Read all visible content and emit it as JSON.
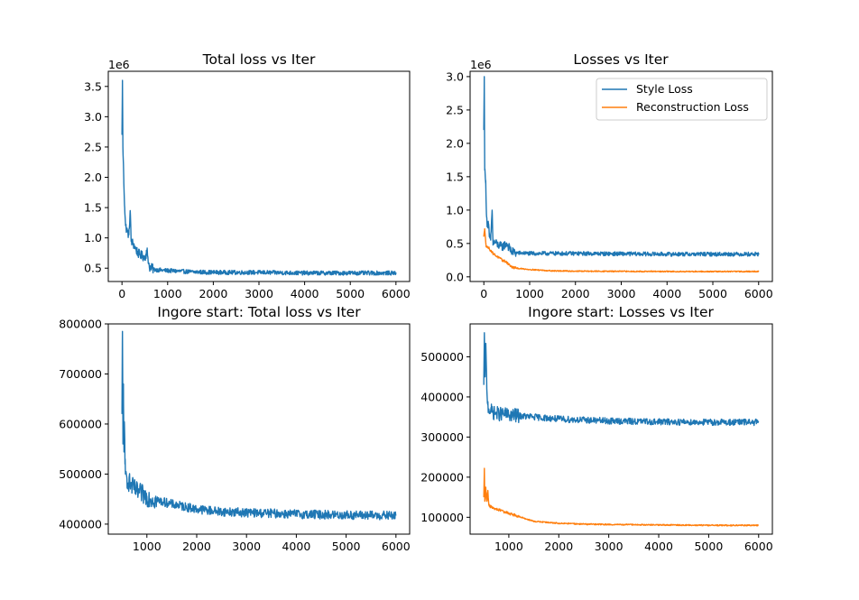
{
  "colors": {
    "style": "#1f77b4",
    "recon": "#ff7f0e",
    "axis": "#000000",
    "background": "#ffffff"
  },
  "chart_data": [
    {
      "type": "line",
      "title": "Total loss vs Iter",
      "xlabel": "",
      "ylabel": "",
      "offset_label": "1e6",
      "xlim": [
        -300,
        6300
      ],
      "ylim": [
        0.28,
        3.75
      ],
      "x_ticks": [
        0,
        1000,
        2000,
        3000,
        4000,
        5000,
        6000
      ],
      "x_tick_labels": [
        "0",
        "1000",
        "2000",
        "3000",
        "4000",
        "5000",
        "6000"
      ],
      "y_ticks": [
        0.5,
        1.0,
        1.5,
        2.0,
        2.5,
        3.0,
        3.5
      ],
      "y_tick_labels": [
        "0.5",
        "1.0",
        "1.5",
        "2.0",
        "2.5",
        "3.0",
        "3.5"
      ],
      "grid": false,
      "series": [
        {
          "color": "#1f77b4",
          "x": [
            0,
            10,
            20,
            40,
            60,
            80,
            100,
            120,
            150,
            180,
            200,
            250,
            300,
            350,
            400,
            500,
            550,
            600,
            700,
            800,
            1000,
            1500,
            2000,
            3000,
            4000,
            5000,
            6000
          ],
          "y": [
            2.7,
            3.6,
            2.5,
            1.95,
            1.5,
            1.2,
            1.15,
            1.1,
            1.05,
            1.45,
            0.95,
            0.9,
            0.82,
            0.75,
            0.72,
            0.68,
            0.78,
            0.52,
            0.48,
            0.47,
            0.46,
            0.44,
            0.43,
            0.43,
            0.42,
            0.42,
            0.42
          ],
          "noise": 0.035
        }
      ]
    },
    {
      "type": "line",
      "title": "Losses vs Iter",
      "xlabel": "",
      "ylabel": "",
      "offset_label": "1e6",
      "xlim": [
        -300,
        6300
      ],
      "ylim": [
        -0.07,
        3.08
      ],
      "x_ticks": [
        0,
        1000,
        2000,
        3000,
        4000,
        5000,
        6000
      ],
      "x_tick_labels": [
        "0",
        "1000",
        "2000",
        "3000",
        "4000",
        "5000",
        "6000"
      ],
      "y_ticks": [
        0.0,
        0.5,
        1.0,
        1.5,
        2.0,
        2.5,
        3.0
      ],
      "y_tick_labels": [
        "0.0",
        "0.5",
        "1.0",
        "1.5",
        "2.0",
        "2.5",
        "3.0"
      ],
      "grid": false,
      "legend_position": "top-right",
      "series": [
        {
          "name": "Style Loss",
          "color": "#1f77b4",
          "x": [
            0,
            10,
            20,
            40,
            60,
            80,
            100,
            120,
            150,
            180,
            200,
            250,
            300,
            400,
            500,
            600,
            700,
            1000,
            2000,
            3000,
            4000,
            5000,
            6000
          ],
          "y": [
            2.2,
            3.0,
            1.6,
            1.4,
            0.9,
            0.75,
            0.8,
            0.6,
            0.55,
            1.0,
            0.5,
            0.52,
            0.48,
            0.45,
            0.5,
            0.38,
            0.36,
            0.35,
            0.35,
            0.345,
            0.34,
            0.34,
            0.34
          ],
          "noise": 0.03
        },
        {
          "name": "Reconstruction Loss",
          "color": "#ff7f0e",
          "x": [
            0,
            20,
            50,
            100,
            200,
            300,
            400,
            500,
            600,
            700,
            1000,
            1500,
            2000,
            3000,
            4000,
            5000,
            6000
          ],
          "y": [
            0.6,
            0.72,
            0.45,
            0.44,
            0.35,
            0.3,
            0.25,
            0.22,
            0.15,
            0.13,
            0.11,
            0.09,
            0.085,
            0.082,
            0.08,
            0.08,
            0.08
          ],
          "noise": 0.008
        }
      ]
    },
    {
      "type": "line",
      "title": "Ingore start: Total loss vs Iter",
      "xlabel": "",
      "ylabel": "",
      "xlim": [
        225,
        6275
      ],
      "ylim": [
        380000,
        800000
      ],
      "x_ticks": [
        1000,
        2000,
        3000,
        4000,
        5000,
        6000
      ],
      "x_tick_labels": [
        "1000",
        "2000",
        "3000",
        "4000",
        "5000",
        "6000"
      ],
      "y_ticks": [
        400000,
        500000,
        600000,
        700000,
        800000
      ],
      "y_tick_labels": [
        "400000",
        "500000",
        "600000",
        "700000",
        "800000"
      ],
      "grid": false,
      "series": [
        {
          "color": "#1f77b4",
          "x": [
            500,
            510,
            520,
            530,
            540,
            550,
            560,
            570,
            600,
            700,
            800,
            1000,
            1200,
            1500,
            2000,
            2500,
            3000,
            4000,
            5000,
            6000
          ],
          "y": [
            620000,
            785000,
            560000,
            680000,
            550000,
            600000,
            520000,
            500000,
            490000,
            475000,
            465000,
            455000,
            448000,
            440000,
            430000,
            425000,
            423000,
            420000,
            418000,
            417000
          ],
          "noise": 9000
        }
      ]
    },
    {
      "type": "line",
      "title": "Ingore start: Losses vs Iter",
      "xlabel": "",
      "ylabel": "",
      "xlim": [
        225,
        6275
      ],
      "ylim": [
        58000,
        582000
      ],
      "x_ticks": [
        1000,
        2000,
        3000,
        4000,
        5000,
        6000
      ],
      "x_tick_labels": [
        "1000",
        "2000",
        "3000",
        "4000",
        "5000",
        "6000"
      ],
      "y_ticks": [
        100000,
        200000,
        300000,
        400000,
        500000
      ],
      "y_tick_labels": [
        "100000",
        "200000",
        "300000",
        "400000",
        "500000"
      ],
      "grid": false,
      "series": [
        {
          "name": "Style Loss",
          "color": "#1f77b4",
          "x": [
            500,
            510,
            520,
            540,
            560,
            580,
            600,
            650,
            700,
            800,
            1000,
            1500,
            2000,
            3000,
            4000,
            5000,
            6000
          ],
          "y": [
            430000,
            560000,
            450000,
            520000,
            420000,
            380000,
            370000,
            365000,
            360000,
            358000,
            355000,
            350000,
            345000,
            340000,
            338000,
            337000,
            337000
          ],
          "noise": 8000
        },
        {
          "name": "Reconstruction Loss",
          "color": "#ff7f0e",
          "x": [
            500,
            510,
            520,
            540,
            560,
            580,
            600,
            650,
            700,
            800,
            1000,
            1200,
            1500,
            2000,
            2500,
            3000,
            4000,
            5000,
            6000
          ],
          "y": [
            150000,
            222000,
            140000,
            175000,
            140000,
            165000,
            130000,
            125000,
            122000,
            118000,
            110000,
            102000,
            90000,
            85000,
            83000,
            82000,
            81000,
            80000,
            80000
          ],
          "noise": 1500
        }
      ]
    }
  ]
}
